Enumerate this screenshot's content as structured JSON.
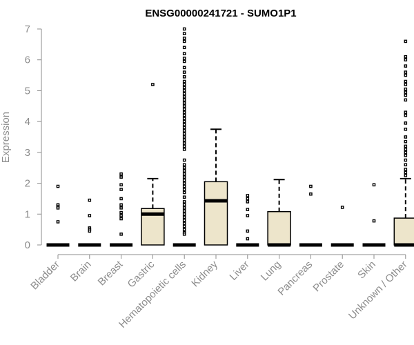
{
  "chart_data": {
    "type": "boxplot",
    "title": "ENSG00000241721 - SUMO1P1",
    "xlabel": "",
    "ylabel": "Expression",
    "ylim": [
      0,
      7
    ],
    "yticks": [
      0,
      1,
      2,
      3,
      4,
      5,
      6,
      7
    ],
    "grid": false,
    "box_fill": "#ede5cb",
    "categories": [
      "Bladder",
      "Brain",
      "Breast",
      "Gastric",
      "Hematopoietic cells",
      "Kidney",
      "Liver",
      "Lung",
      "Pancreas",
      "Prostate",
      "Skin",
      "Unknown / Other"
    ],
    "boxes": [
      {
        "q1": 0,
        "median": 0,
        "q3": 0,
        "whisker_low": 0,
        "whisker_high": 0,
        "outliers": [
          1.9,
          1.3,
          1.25,
          1.2,
          0.75
        ]
      },
      {
        "q1": 0,
        "median": 0,
        "q3": 0,
        "whisker_low": 0,
        "whisker_high": 0,
        "outliers": [
          1.45,
          0.95,
          0.55,
          0.5,
          0.45
        ]
      },
      {
        "q1": 0,
        "median": 0,
        "q3": 0,
        "whisker_low": 0,
        "whisker_high": 0,
        "outliers": [
          2.3,
          2.2,
          1.95,
          1.8,
          1.5,
          1.3,
          1.2,
          1.05,
          0.95,
          0.85,
          0.35
        ]
      },
      {
        "q1": 0,
        "median": 1,
        "q3": 1.18,
        "whisker_low": 0,
        "whisker_high": 2.15,
        "outliers": [
          5.2
        ]
      },
      {
        "q1": 0,
        "median": 0,
        "q3": 0,
        "whisker_low": 0,
        "whisker_high": 0,
        "outliers": [
          7.0,
          6.85,
          6.7,
          6.6,
          6.4,
          6.2,
          6.05,
          5.95,
          5.75,
          5.6,
          5.45,
          5.3,
          5.2,
          5.1,
          5.0,
          4.9,
          4.8,
          4.7,
          4.6,
          4.5,
          4.4,
          4.3,
          4.2,
          4.1,
          4.0,
          3.9,
          3.8,
          3.7,
          3.6,
          3.5,
          3.4,
          3.3,
          3.2,
          3.1,
          2.75,
          2.6,
          2.5,
          2.4,
          2.3,
          2.2,
          2.1,
          2.0,
          1.9,
          1.8,
          1.7,
          1.55,
          1.4,
          1.3,
          1.2,
          1.1,
          1.0,
          0.9,
          0.8,
          0.7,
          0.6,
          0.5,
          0.4,
          0.35
        ]
      },
      {
        "q1": 0,
        "median": 1.43,
        "q3": 2.05,
        "whisker_low": 0,
        "whisker_high": 3.75,
        "outliers": []
      },
      {
        "q1": 0,
        "median": 0,
        "q3": 0,
        "whisker_low": 0,
        "whisker_high": 0,
        "outliers": [
          1.6,
          1.5,
          1.4,
          1.15,
          0.95,
          0.45,
          0.2
        ]
      },
      {
        "q1": 0,
        "median": 0,
        "q3": 1.08,
        "whisker_low": 0,
        "whisker_high": 2.12,
        "outliers": []
      },
      {
        "q1": 0,
        "median": 0,
        "q3": 0,
        "whisker_low": 0,
        "whisker_high": 0,
        "outliers": [
          1.9,
          1.65
        ]
      },
      {
        "q1": 0,
        "median": 0,
        "q3": 0,
        "whisker_low": 0,
        "whisker_high": 0,
        "outliers": [
          1.22
        ]
      },
      {
        "q1": 0,
        "median": 0,
        "q3": 0,
        "whisker_low": 0,
        "whisker_high": 0,
        "outliers": [
          1.95,
          0.78
        ]
      },
      {
        "q1": 0,
        "median": 0,
        "q3": 0.87,
        "whisker_low": 0,
        "whisker_high": 2.15,
        "outliers": [
          6.6,
          6.1,
          6.0,
          5.8,
          5.6,
          5.5,
          5.3,
          5.2,
          5.05,
          4.95,
          4.85,
          4.7,
          4.3,
          4.2,
          3.95,
          3.75,
          3.5,
          3.35,
          3.2,
          3.1,
          3.0,
          2.9,
          2.75,
          2.6,
          2.45,
          2.35,
          2.25
        ]
      }
    ]
  }
}
